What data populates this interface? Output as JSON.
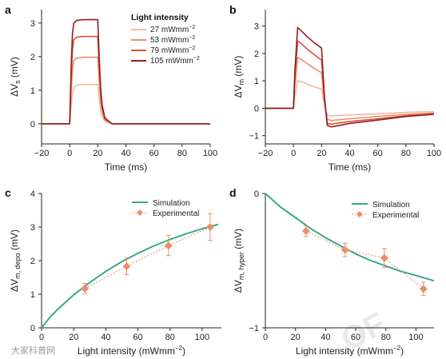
{
  "colors": {
    "c1": "#f3b9a1",
    "c2": "#ec8e6f",
    "c3": "#d9533a",
    "c4": "#8e1f1c",
    "simulation": "#3aa98a",
    "experimental": "#e8906a"
  },
  "panels": {
    "a": "a",
    "b": "b",
    "c": "c",
    "d": "d"
  },
  "watermark": {
    "corner": "大家科普网",
    "big": "OF"
  },
  "chart_data": [
    {
      "id": "a",
      "type": "line",
      "xlabel": "Time (ms)",
      "ylabel_main": "ΔV",
      "ylabel_sub": "s",
      "ylabel_unit": " (mV)",
      "xlim": [
        -20,
        100
      ],
      "ylim": [
        -0.6,
        3.4
      ],
      "xticks": [
        -20,
        0,
        20,
        40,
        60,
        80,
        100
      ],
      "yticks": [
        0,
        1,
        2,
        3
      ],
      "legend_title": "Light intensity",
      "legend": [
        {
          "value": "27",
          "unit": " mWmm",
          "sup": "−2"
        },
        {
          "value": "53",
          "unit": " mWmm",
          "sup": "−2"
        },
        {
          "value": "79",
          "unit": " mWmm",
          "sup": "−2"
        },
        {
          "value": "105",
          "unit": " mWmm",
          "sup": "−2"
        }
      ],
      "series": [
        {
          "x": [
            -20,
            0,
            1,
            2,
            3,
            5,
            10,
            20,
            21,
            22,
            23,
            25,
            30,
            100
          ],
          "y": [
            0,
            0,
            0.5,
            0.9,
            1.08,
            1.15,
            1.17,
            1.17,
            0.75,
            0.42,
            0.22,
            0.07,
            0,
            0
          ]
        },
        {
          "x": [
            -20,
            0,
            1,
            2,
            3,
            5,
            10,
            20,
            21,
            22,
            23,
            25,
            30,
            100
          ],
          "y": [
            0,
            0,
            0.9,
            1.6,
            1.88,
            1.96,
            1.98,
            1.98,
            1.3,
            0.72,
            0.38,
            0.12,
            0,
            0
          ]
        },
        {
          "x": [
            -20,
            0,
            1,
            2,
            3,
            5,
            10,
            20,
            21,
            22,
            23,
            25,
            30,
            100
          ],
          "y": [
            0,
            0,
            1.3,
            2.2,
            2.5,
            2.58,
            2.6,
            2.6,
            1.7,
            0.95,
            0.5,
            0.15,
            0,
            0
          ]
        },
        {
          "x": [
            -20,
            0,
            1,
            2,
            3,
            5,
            10,
            20,
            21,
            22,
            23,
            25,
            30,
            100
          ],
          "y": [
            0,
            0,
            1.6,
            2.7,
            3.0,
            3.08,
            3.1,
            3.1,
            2.0,
            1.1,
            0.58,
            0.18,
            0,
            0
          ]
        }
      ]
    },
    {
      "id": "b",
      "type": "line",
      "xlabel": "Time (ms)",
      "ylabel_main": "ΔV",
      "ylabel_sub": "m",
      "ylabel_unit": " (mV)",
      "xlim": [
        -20,
        100
      ],
      "ylim": [
        -1.3,
        3.6
      ],
      "xticks": [
        -20,
        0,
        20,
        40,
        60,
        80,
        100
      ],
      "yticks": [
        -1,
        0,
        1,
        2,
        3
      ],
      "series": [
        {
          "x": [
            -20,
            0,
            1,
            3,
            5,
            10,
            15,
            20,
            22,
            24,
            27,
            30,
            40,
            60,
            80,
            100
          ],
          "y": [
            0,
            0,
            0.45,
            1.0,
            0.98,
            0.88,
            0.78,
            0.7,
            0.1,
            -0.25,
            -0.28,
            -0.27,
            -0.24,
            -0.2,
            -0.15,
            -0.12
          ]
        },
        {
          "x": [
            -20,
            0,
            1,
            3,
            5,
            10,
            15,
            20,
            22,
            24,
            27,
            30,
            40,
            60,
            80,
            100
          ],
          "y": [
            0,
            0,
            0.8,
            1.85,
            1.8,
            1.62,
            1.45,
            1.3,
            0.25,
            -0.4,
            -0.45,
            -0.43,
            -0.38,
            -0.3,
            -0.22,
            -0.17
          ]
        },
        {
          "x": [
            -20,
            0,
            1,
            3,
            5,
            10,
            15,
            20,
            22,
            24,
            27,
            30,
            40,
            60,
            80,
            100
          ],
          "y": [
            0,
            0,
            1.1,
            2.45,
            2.38,
            2.15,
            1.95,
            1.75,
            0.35,
            -0.55,
            -0.58,
            -0.55,
            -0.48,
            -0.38,
            -0.27,
            -0.2
          ]
        },
        {
          "x": [
            -20,
            0,
            1,
            3,
            5,
            10,
            15,
            20,
            22,
            24,
            27,
            30,
            40,
            60,
            80,
            100
          ],
          "y": [
            0,
            0,
            1.35,
            2.95,
            2.85,
            2.6,
            2.38,
            2.2,
            0.45,
            -0.62,
            -0.68,
            -0.65,
            -0.55,
            -0.43,
            -0.3,
            -0.22
          ]
        }
      ]
    },
    {
      "id": "c",
      "type": "scatter",
      "xlabel_main": "Light intensity (mWmm",
      "xlabel_sup": "−2",
      "xlabel_end": ")",
      "ylabel_main": "ΔV",
      "ylabel_sub": "m, depo",
      "ylabel_unit": " (mV)",
      "xlim": [
        0,
        112
      ],
      "ylim": [
        0,
        4
      ],
      "xticks": [
        0,
        20,
        40,
        60,
        80,
        100
      ],
      "yticks": [
        0,
        1,
        2,
        3,
        4
      ],
      "legend": [
        "Simulation",
        "Experimental"
      ],
      "simulation": {
        "x": [
          0,
          5,
          10,
          20,
          30,
          40,
          50,
          60,
          70,
          80,
          90,
          100,
          110
        ],
        "y": [
          0,
          0.3,
          0.55,
          0.98,
          1.35,
          1.68,
          1.97,
          2.22,
          2.44,
          2.63,
          2.8,
          2.95,
          3.08
        ]
      },
      "experimental": {
        "x": [
          27,
          53,
          79,
          105
        ],
        "y": [
          1.17,
          1.83,
          2.45,
          3.0
        ],
        "err": [
          0.15,
          0.25,
          0.3,
          0.4
        ]
      }
    },
    {
      "id": "d",
      "type": "scatter",
      "xlabel_main": "Light intensity (mWmm",
      "xlabel_sup": "−2",
      "xlabel_end": ")",
      "ylabel_main": "ΔV",
      "ylabel_sub": "m, hyper",
      "ylabel_unit": " (mV)",
      "xlim": [
        0,
        112
      ],
      "ylim": [
        -1,
        0
      ],
      "xticks": [
        0,
        20,
        40,
        60,
        80,
        100
      ],
      "yticks": [
        -1,
        0
      ],
      "legend": [
        "Simulation",
        "Experimental"
      ],
      "simulation": {
        "x": [
          0,
          5,
          10,
          20,
          30,
          40,
          50,
          60,
          70,
          80,
          90,
          100,
          112
        ],
        "y": [
          0,
          -0.05,
          -0.1,
          -0.18,
          -0.26,
          -0.33,
          -0.39,
          -0.45,
          -0.5,
          -0.54,
          -0.58,
          -0.61,
          -0.65
        ]
      },
      "experimental": {
        "x": [
          27,
          53,
          79,
          105
        ],
        "y": [
          -0.28,
          -0.42,
          -0.48,
          -0.71
        ],
        "err": [
          0.04,
          0.05,
          0.07,
          0.05
        ]
      }
    }
  ]
}
